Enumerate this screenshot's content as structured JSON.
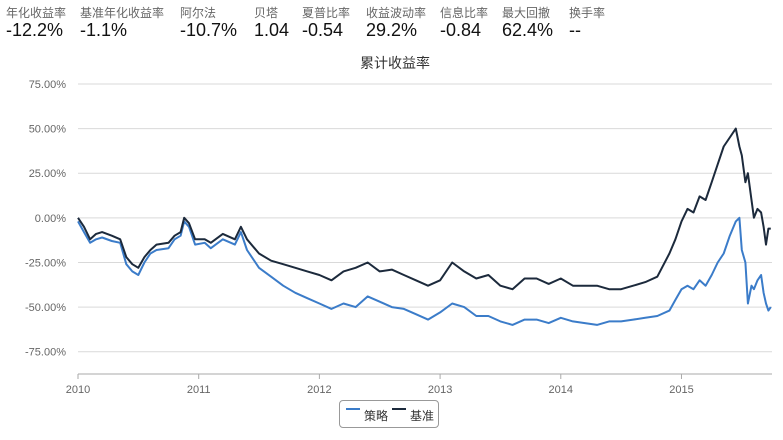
{
  "stats": [
    {
      "label": "年化收益率",
      "value": "-12.2%"
    },
    {
      "label": "基准年化收益率",
      "value": "-1.1%"
    },
    {
      "label": "阿尔法",
      "value": "-10.7%"
    },
    {
      "label": "贝塔",
      "value": "1.04"
    },
    {
      "label": "夏普比率",
      "value": "-0.54"
    },
    {
      "label": "收益波动率",
      "value": "29.2%"
    },
    {
      "label": "信息比率",
      "value": "-0.84"
    },
    {
      "label": "最大回撤",
      "value": "62.4%"
    },
    {
      "label": "换手率",
      "value": "--"
    }
  ],
  "colors": {
    "strategy": "#3b7cc9",
    "benchmark": "#1c2a3c",
    "grid": "#d9d9d9",
    "axis": "#aaaaaa"
  },
  "chart_data": {
    "type": "line",
    "title": "累计收益率",
    "xlabel": "",
    "ylabel": "",
    "xlim": [
      2010.0,
      2015.75
    ],
    "ylim": [
      -87.5,
      75
    ],
    "y_ticks": [
      75,
      50,
      25,
      0,
      -25,
      -50,
      -75
    ],
    "y_tick_labels": [
      "75.00%",
      "50.00%",
      "25.00%",
      "0.00%",
      "-25.00%",
      "-50.00%",
      "-75.00%"
    ],
    "x_ticks": [
      2010,
      2011,
      2012,
      2013,
      2014,
      2015
    ],
    "x_tick_labels": [
      "2010",
      "2011",
      "2012",
      "2013",
      "2014",
      "2015"
    ],
    "legend_position": "bottom-center",
    "series": [
      {
        "name": "策略",
        "x": [
          2010.0,
          2010.05,
          2010.1,
          2010.15,
          2010.2,
          2010.28,
          2010.35,
          2010.4,
          2010.45,
          2010.5,
          2010.55,
          2010.6,
          2010.65,
          2010.75,
          2010.8,
          2010.85,
          2010.88,
          2010.92,
          2010.97,
          2011.05,
          2011.1,
          2011.2,
          2011.3,
          2011.35,
          2011.4,
          2011.5,
          2011.6,
          2011.7,
          2011.8,
          2011.9,
          2012.0,
          2012.1,
          2012.2,
          2012.3,
          2012.4,
          2012.5,
          2012.6,
          2012.7,
          2012.8,
          2012.9,
          2013.0,
          2013.1,
          2013.2,
          2013.3,
          2013.4,
          2013.5,
          2013.6,
          2013.7,
          2013.8,
          2013.9,
          2014.0,
          2014.1,
          2014.2,
          2014.3,
          2014.4,
          2014.5,
          2014.6,
          2014.7,
          2014.8,
          2014.9,
          2014.95,
          2015.0,
          2015.05,
          2015.1,
          2015.15,
          2015.2,
          2015.25,
          2015.3,
          2015.35,
          2015.4,
          2015.45,
          2015.48,
          2015.5,
          2015.53,
          2015.55,
          2015.58,
          2015.6,
          2015.63,
          2015.66,
          2015.68,
          2015.7,
          2015.72,
          2015.74
        ],
        "y": [
          -2,
          -8,
          -14,
          -12,
          -11,
          -13,
          -14,
          -26,
          -30,
          -32,
          -25,
          -20,
          -18,
          -17,
          -12,
          -10,
          -2,
          -5,
          -15,
          -14,
          -17,
          -12,
          -15,
          -8,
          -18,
          -28,
          -33,
          -38,
          -42,
          -45,
          -48,
          -51,
          -48,
          -50,
          -44,
          -47,
          -50,
          -51,
          -54,
          -57,
          -53,
          -48,
          -50,
          -55,
          -55,
          -58,
          -60,
          -57,
          -57,
          -59,
          -56,
          -58,
          -59,
          -60,
          -58,
          -58,
          -57,
          -56,
          -55,
          -52,
          -46,
          -40,
          -38,
          -40,
          -35,
          -38,
          -32,
          -25,
          -20,
          -10,
          -2,
          0,
          -18,
          -25,
          -48,
          -38,
          -40,
          -35,
          -32,
          -42,
          -48,
          -52,
          -50
        ]
      },
      {
        "name": "基准",
        "x": [
          2010.0,
          2010.05,
          2010.1,
          2010.15,
          2010.2,
          2010.28,
          2010.35,
          2010.4,
          2010.45,
          2010.5,
          2010.55,
          2010.6,
          2010.65,
          2010.75,
          2010.8,
          2010.85,
          2010.88,
          2010.92,
          2010.97,
          2011.05,
          2011.1,
          2011.2,
          2011.3,
          2011.35,
          2011.4,
          2011.5,
          2011.6,
          2011.7,
          2011.8,
          2011.9,
          2012.0,
          2012.1,
          2012.2,
          2012.3,
          2012.4,
          2012.5,
          2012.6,
          2012.7,
          2012.8,
          2012.9,
          2013.0,
          2013.1,
          2013.2,
          2013.3,
          2013.4,
          2013.5,
          2013.6,
          2013.7,
          2013.8,
          2013.9,
          2014.0,
          2014.1,
          2014.2,
          2014.3,
          2014.4,
          2014.5,
          2014.6,
          2014.7,
          2014.8,
          2014.9,
          2014.95,
          2015.0,
          2015.05,
          2015.1,
          2015.15,
          2015.2,
          2015.25,
          2015.3,
          2015.35,
          2015.4,
          2015.45,
          2015.48,
          2015.5,
          2015.53,
          2015.55,
          2015.58,
          2015.6,
          2015.63,
          2015.66,
          2015.68,
          2015.7,
          2015.72,
          2015.74
        ],
        "y": [
          0,
          -5,
          -12,
          -9,
          -8,
          -10,
          -12,
          -22,
          -26,
          -28,
          -22,
          -18,
          -15,
          -14,
          -10,
          -8,
          0,
          -3,
          -12,
          -12,
          -14,
          -9,
          -12,
          -5,
          -12,
          -20,
          -24,
          -26,
          -28,
          -30,
          -32,
          -35,
          -30,
          -28,
          -25,
          -30,
          -29,
          -32,
          -35,
          -38,
          -35,
          -25,
          -30,
          -34,
          -32,
          -38,
          -40,
          -34,
          -34,
          -37,
          -34,
          -38,
          -38,
          -38,
          -40,
          -40,
          -38,
          -36,
          -33,
          -20,
          -12,
          -2,
          5,
          3,
          12,
          10,
          20,
          30,
          40,
          45,
          50,
          40,
          35,
          20,
          25,
          10,
          0,
          5,
          3,
          -5,
          -15,
          -6,
          -6
        ]
      }
    ]
  }
}
